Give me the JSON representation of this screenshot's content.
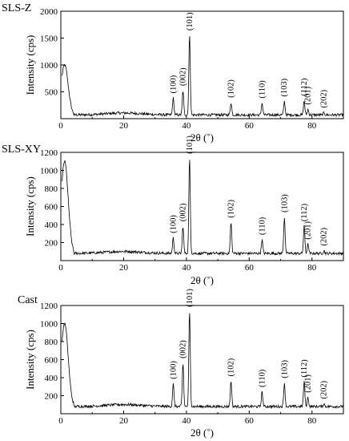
{
  "chart_data": [
    {
      "type": "line",
      "title": "SLS-Z",
      "xlabel": "2θ (˚)",
      "ylabel": "Intensity (cps)",
      "xlim": [
        0,
        90
      ],
      "ylim": [
        0,
        2000
      ],
      "x_ticks": [
        0,
        20,
        40,
        60,
        80
      ],
      "y_ticks": [
        500,
        1000,
        1500,
        2000
      ],
      "background": 70,
      "low_angle_rise": 1000,
      "peaks": [
        {
          "label": "(100)",
          "x": 35.8,
          "y": 380
        },
        {
          "label": "(002)",
          "x": 38.9,
          "y": 520
        },
        {
          "label": "(101)",
          "x": 41.0,
          "y": 1550
        },
        {
          "label": "(102)",
          "x": 54.2,
          "y": 300
        },
        {
          "label": "(110)",
          "x": 64.1,
          "y": 290
        },
        {
          "label": "(103)",
          "x": 71.2,
          "y": 320
        },
        {
          "label": "(112)",
          "x": 77.5,
          "y": 330
        },
        {
          "label": "(201)",
          "x": 78.7,
          "y": 170
        },
        {
          "label": "(202)",
          "x": 83.8,
          "y": 110
        }
      ]
    },
    {
      "type": "line",
      "title": "SLS-XY",
      "xlabel": "2θ (˚)",
      "ylabel": "Intensity (cps)",
      "xlim": [
        0,
        90
      ],
      "ylim": [
        0,
        1200
      ],
      "x_ticks": [
        0,
        20,
        40,
        60,
        80
      ],
      "y_ticks": [
        200,
        400,
        600,
        800,
        1000,
        1200
      ],
      "background": 80,
      "low_angle_rise": 1100,
      "peaks": [
        {
          "label": "(100)",
          "x": 35.8,
          "y": 250
        },
        {
          "label": "(002)",
          "x": 38.9,
          "y": 380
        },
        {
          "label": "(101)",
          "x": 41.0,
          "y": 1130
        },
        {
          "label": "(102)",
          "x": 54.2,
          "y": 420
        },
        {
          "label": "(110)",
          "x": 64.1,
          "y": 230
        },
        {
          "label": "(103)",
          "x": 71.2,
          "y": 480
        },
        {
          "label": "(112)",
          "x": 77.5,
          "y": 380
        },
        {
          "label": "(201)",
          "x": 78.7,
          "y": 180
        },
        {
          "label": "(202)",
          "x": 83.8,
          "y": 110
        }
      ]
    },
    {
      "type": "line",
      "title": "Cast",
      "xlabel": "2θ (˚)",
      "ylabel": "Intensity (cps)",
      "xlim": [
        0,
        90
      ],
      "ylim": [
        0,
        1200
      ],
      "x_ticks": [
        0,
        20,
        40,
        60,
        80
      ],
      "y_ticks": [
        200,
        400,
        600,
        800,
        1000,
        1200
      ],
      "background": 80,
      "low_angle_rise": 1000,
      "peaks": [
        {
          "label": "(100)",
          "x": 35.8,
          "y": 330
        },
        {
          "label": "(002)",
          "x": 38.9,
          "y": 560
        },
        {
          "label": "(101)",
          "x": 41.0,
          "y": 1130
        },
        {
          "label": "(102)",
          "x": 54.2,
          "y": 360
        },
        {
          "label": "(110)",
          "x": 64.1,
          "y": 240
        },
        {
          "label": "(103)",
          "x": 71.2,
          "y": 340
        },
        {
          "label": "(112)",
          "x": 77.5,
          "y": 350
        },
        {
          "label": "(201)",
          "x": 78.7,
          "y": 180
        },
        {
          "label": "(202)",
          "x": 83.8,
          "y": 110
        }
      ]
    }
  ]
}
